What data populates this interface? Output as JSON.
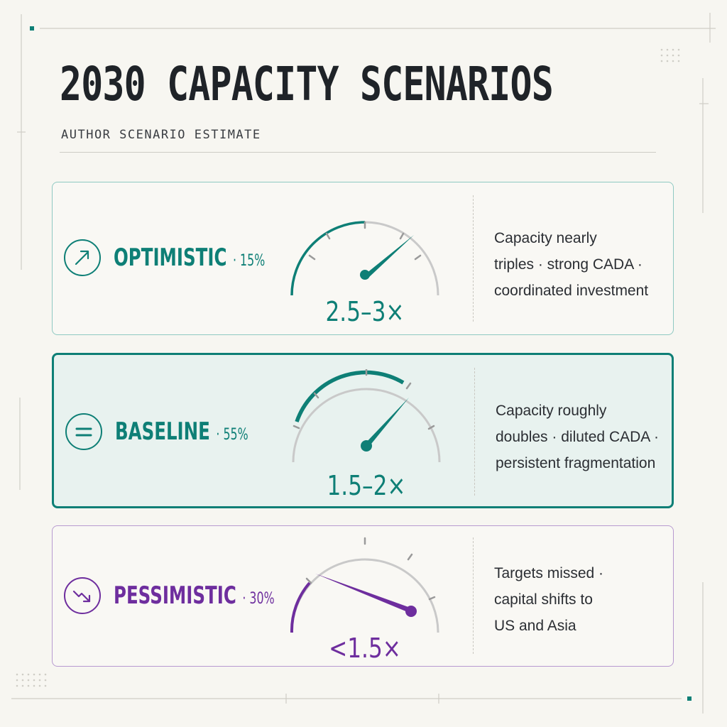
{
  "header": {
    "title": "2030 CAPACITY SCENARIOS",
    "subtitle": "AUTHOR SCENARIO ESTIMATE"
  },
  "colors": {
    "teal": "#0e7f76",
    "purple": "#6e2e9e",
    "track": "#c9c9c9",
    "ink": "#1f2328"
  },
  "scenarios": [
    {
      "name": "OPTIMISTIC",
      "probability": "· 15%",
      "icon": "trend-up-arrow-icon",
      "value": "2.5–3×",
      "description": [
        "Capacity nearly",
        "triples · strong CADA ·",
        "coordinated investment"
      ]
    },
    {
      "name": "BASELINE",
      "probability": "· 55%",
      "icon": "equals-icon",
      "value": "1.5–2×",
      "description": [
        "Capacity roughly",
        "doubles · diluted CADA ·",
        "persistent fragmentation"
      ]
    },
    {
      "name": "PESSIMISTIC",
      "probability": "· 30%",
      "icon": "trend-down-arrow-icon",
      "value": "<1.5×",
      "description": [
        "Targets missed ·",
        "capital shifts to",
        "US and Asia"
      ]
    }
  ]
}
